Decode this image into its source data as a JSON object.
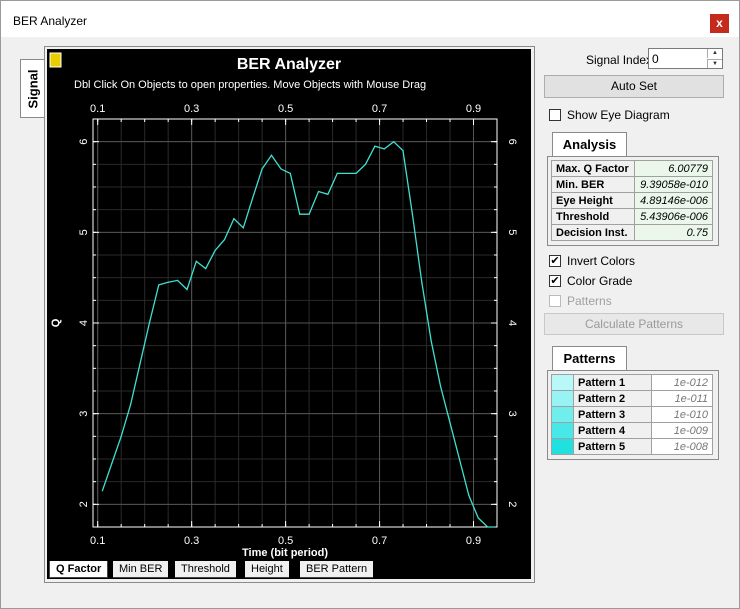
{
  "window": {
    "title": "BER Analyzer",
    "close_label": "x"
  },
  "side_tab": {
    "label": "Signal"
  },
  "plot": {
    "title": "BER Analyzer",
    "subtitle": "Dbl Click On Objects to open properties.  Move Objects with Mouse Drag",
    "xlabel": "Time (bit period)",
    "ylabel": "Q",
    "line_color": "#40e0d0",
    "background": "#000000"
  },
  "chart_data": {
    "type": "line",
    "title": "BER Analyzer",
    "xlabel": "Time (bit period)",
    "ylabel": "Q",
    "xlim": [
      0.09,
      0.95
    ],
    "ylim": [
      1.75,
      6.25
    ],
    "xticks": [
      0.1,
      0.3,
      0.5,
      0.7,
      0.9
    ],
    "yticks": [
      2,
      3,
      4,
      5,
      6
    ],
    "grid": true,
    "x": [
      0.11,
      0.13,
      0.15,
      0.17,
      0.19,
      0.21,
      0.23,
      0.25,
      0.27,
      0.29,
      0.31,
      0.33,
      0.35,
      0.37,
      0.39,
      0.41,
      0.43,
      0.45,
      0.47,
      0.49,
      0.51,
      0.53,
      0.55,
      0.57,
      0.59,
      0.61,
      0.63,
      0.65,
      0.67,
      0.69,
      0.71,
      0.73,
      0.75,
      0.77,
      0.79,
      0.81,
      0.83,
      0.85,
      0.87,
      0.89,
      0.91,
      0.93,
      0.945
    ],
    "y": [
      2.15,
      2.45,
      2.75,
      3.1,
      3.55,
      4.0,
      4.42,
      4.45,
      4.47,
      4.37,
      4.68,
      4.6,
      4.8,
      4.92,
      5.15,
      5.05,
      5.38,
      5.7,
      5.85,
      5.7,
      5.65,
      5.2,
      5.2,
      5.45,
      5.42,
      5.65,
      5.65,
      5.65,
      5.75,
      5.95,
      5.92,
      6.0,
      5.9,
      5.2,
      4.45,
      3.8,
      3.3,
      2.9,
      2.5,
      2.1,
      1.85,
      1.75,
      1.75
    ]
  },
  "bottom_tabs": [
    "Q Factor",
    "Min BER",
    "Threshold",
    "Height",
    "BER Pattern"
  ],
  "signal_index": {
    "label": "Signal Index:",
    "value": "0"
  },
  "buttons": {
    "auto_set": "Auto Set",
    "calculate_patterns": "Calculate Patterns"
  },
  "checkboxes": {
    "show_eye": {
      "label": "Show Eye Diagram",
      "checked": false
    },
    "invert": {
      "label": "Invert Colors",
      "checked": true
    },
    "color_grade": {
      "label": "Color Grade",
      "checked": true
    },
    "patterns": {
      "label": "Patterns",
      "checked": false
    }
  },
  "analysis": {
    "tab_label": "Analysis",
    "rows": [
      {
        "key": "Max. Q Factor",
        "value": "6.00779"
      },
      {
        "key": "Min. BER",
        "value": "9.39058e-010"
      },
      {
        "key": "Eye Height",
        "value": "4.89146e-006"
      },
      {
        "key": "Threshold",
        "value": "5.43906e-006"
      },
      {
        "key": "Decision Inst.",
        "value": "0.75"
      }
    ]
  },
  "patterns": {
    "tab_label": "Patterns",
    "rows": [
      {
        "name": "Pattern 1",
        "value": "1e-012",
        "color": "#b8f8f8"
      },
      {
        "name": "Pattern 2",
        "value": "1e-011",
        "color": "#98f4f4"
      },
      {
        "name": "Pattern 3",
        "value": "1e-010",
        "color": "#70eeee"
      },
      {
        "name": "Pattern 4",
        "value": "1e-009",
        "color": "#48e8e8"
      },
      {
        "name": "Pattern 5",
        "value": "1e-008",
        "color": "#20e0e0"
      }
    ]
  }
}
